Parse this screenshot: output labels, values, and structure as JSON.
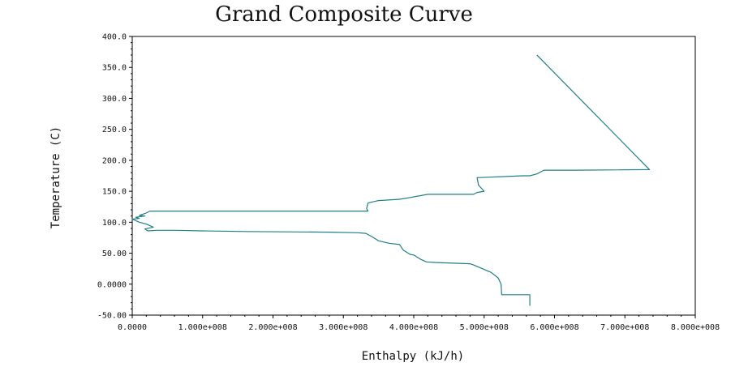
{
  "chart_data": {
    "type": "line",
    "title": "Grand Composite Curve",
    "xlabel": "Enthalpy (kJ/h)",
    "ylabel": "Temperature (C)",
    "xlim": [
      0,
      800000000
    ],
    "ylim": [
      -50,
      400
    ],
    "x_ticks": [
      "0.0000",
      "1.000e+008",
      "2.000e+008",
      "3.000e+008",
      "4.000e+008",
      "5.000e+008",
      "6.000e+008",
      "7.000e+008",
      "8.000e+008"
    ],
    "y_ticks": [
      "400.0",
      "350.0",
      "300.0",
      "250.0",
      "200.0",
      "150.0",
      "100.0",
      "50.00",
      "0.0000",
      "-50.00"
    ],
    "grid": false,
    "line_color": "#1f7f86",
    "series": [
      {
        "values": [
          [
            565000000,
            -35
          ],
          [
            565000000,
            -17
          ],
          [
            525000000,
            -17
          ],
          [
            524000000,
            0
          ],
          [
            520000000,
            10
          ],
          [
            510000000,
            19
          ],
          [
            485000000,
            31
          ],
          [
            480000000,
            33
          ],
          [
            430000000,
            35
          ],
          [
            418000000,
            36
          ],
          [
            410000000,
            40
          ],
          [
            400000000,
            47
          ],
          [
            395000000,
            48
          ],
          [
            385000000,
            55
          ],
          [
            380000000,
            64
          ],
          [
            365000000,
            66
          ],
          [
            350000000,
            70
          ],
          [
            340000000,
            77
          ],
          [
            332000000,
            82
          ],
          [
            320000000,
            83
          ],
          [
            280000000,
            84
          ],
          [
            160000000,
            85
          ],
          [
            100000000,
            86
          ],
          [
            60000000,
            87
          ],
          [
            35000000,
            87
          ],
          [
            22000000,
            86
          ],
          [
            18000000,
            89
          ],
          [
            30000000,
            92
          ],
          [
            20000000,
            97
          ],
          [
            10000000,
            100
          ],
          [
            0,
            105
          ],
          [
            10000000,
            106
          ],
          [
            5000000,
            108
          ],
          [
            18000000,
            110
          ],
          [
            10000000,
            111
          ],
          [
            20000000,
            115
          ],
          [
            25000000,
            118
          ],
          [
            335000000,
            118
          ],
          [
            333000000,
            122
          ],
          [
            335000000,
            131
          ],
          [
            350000000,
            135
          ],
          [
            380000000,
            137
          ],
          [
            395000000,
            140
          ],
          [
            420000000,
            145
          ],
          [
            485000000,
            145
          ],
          [
            490000000,
            148
          ],
          [
            500000000,
            150
          ],
          [
            492000000,
            160
          ],
          [
            490000000,
            172
          ],
          [
            555000000,
            175
          ],
          [
            565000000,
            175
          ],
          [
            575000000,
            178
          ],
          [
            585000000,
            184
          ],
          [
            630000000,
            184
          ],
          [
            735000000,
            185
          ],
          [
            575000000,
            370
          ]
        ]
      }
    ]
  }
}
